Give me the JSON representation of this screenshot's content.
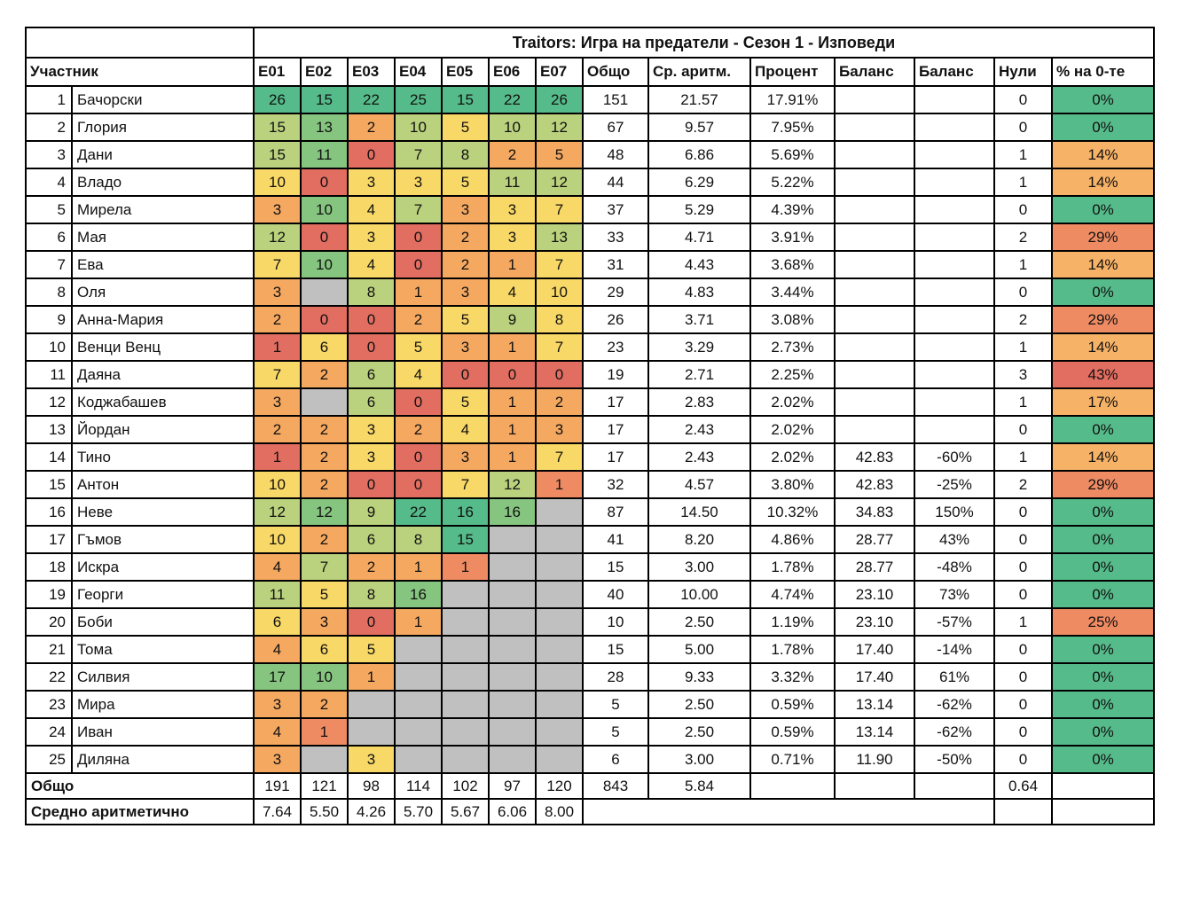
{
  "title": "Traitors: Игра на предатели - Сезон 1 - Изповеди",
  "columns": {
    "participant": "Участник",
    "episodes": [
      "E01",
      "E02",
      "E03",
      "E04",
      "E05",
      "E06",
      "E07"
    ],
    "rest": [
      "Общо",
      "Ср. аритм.",
      "Процент",
      "Баланс",
      "Баланс",
      "Нули",
      "% на 0-те"
    ]
  },
  "palette": {
    "g": "#56bb8a",
    "mg": "#86c57f",
    "lg": "#bad17d",
    "y": "#f8d866",
    "o": "#f5a860",
    "o2": "#f6b267",
    "r2": "#ee8b63",
    "r": "#e26d61",
    "gray": "#c0c0c0"
  },
  "rows": [
    {
      "n": "1",
      "name": "Бачорски",
      "e": [
        [
          "26",
          "g"
        ],
        [
          "15",
          "g"
        ],
        [
          "22",
          "g"
        ],
        [
          "25",
          "g"
        ],
        [
          "15",
          "g"
        ],
        [
          "22",
          "g"
        ],
        [
          "26",
          "g"
        ]
      ],
      "t": "151",
      "a": "21.57",
      "p": "17.91%",
      "b1": "",
      "b2": "",
      "z": "0",
      "zp": "0%",
      "zc": "g"
    },
    {
      "n": "2",
      "name": "Глория",
      "e": [
        [
          "15",
          "lg"
        ],
        [
          "13",
          "mg"
        ],
        [
          "2",
          "o"
        ],
        [
          "10",
          "lg"
        ],
        [
          "5",
          "y"
        ],
        [
          "10",
          "lg"
        ],
        [
          "12",
          "lg"
        ]
      ],
      "t": "67",
      "a": "9.57",
      "p": "7.95%",
      "b1": "",
      "b2": "",
      "z": "0",
      "zp": "0%",
      "zc": "g"
    },
    {
      "n": "3",
      "name": "Дани",
      "e": [
        [
          "15",
          "lg"
        ],
        [
          "11",
          "mg"
        ],
        [
          "0",
          "r"
        ],
        [
          "7",
          "lg"
        ],
        [
          "8",
          "lg"
        ],
        [
          "2",
          "o"
        ],
        [
          "5",
          "o"
        ]
      ],
      "t": "48",
      "a": "6.86",
      "p": "5.69%",
      "b1": "",
      "b2": "",
      "z": "1",
      "zp": "14%",
      "zc": "o2"
    },
    {
      "n": "4",
      "name": "Владо",
      "e": [
        [
          "10",
          "y"
        ],
        [
          "0",
          "r"
        ],
        [
          "3",
          "y"
        ],
        [
          "3",
          "y"
        ],
        [
          "5",
          "y"
        ],
        [
          "11",
          "lg"
        ],
        [
          "12",
          "lg"
        ]
      ],
      "t": "44",
      "a": "6.29",
      "p": "5.22%",
      "b1": "",
      "b2": "",
      "z": "1",
      "zp": "14%",
      "zc": "o2"
    },
    {
      "n": "5",
      "name": "Мирела",
      "e": [
        [
          "3",
          "o"
        ],
        [
          "10",
          "mg"
        ],
        [
          "4",
          "y"
        ],
        [
          "7",
          "lg"
        ],
        [
          "3",
          "o"
        ],
        [
          "3",
          "y"
        ],
        [
          "7",
          "y"
        ]
      ],
      "t": "37",
      "a": "5.29",
      "p": "4.39%",
      "b1": "",
      "b2": "",
      "z": "0",
      "zp": "0%",
      "zc": "g"
    },
    {
      "n": "6",
      "name": "Мая",
      "e": [
        [
          "12",
          "lg"
        ],
        [
          "0",
          "r"
        ],
        [
          "3",
          "y"
        ],
        [
          "0",
          "r"
        ],
        [
          "2",
          "o"
        ],
        [
          "3",
          "y"
        ],
        [
          "13",
          "lg"
        ]
      ],
      "t": "33",
      "a": "4.71",
      "p": "3.91%",
      "b1": "",
      "b2": "",
      "z": "2",
      "zp": "29%",
      "zc": "r2"
    },
    {
      "n": "7",
      "name": "Ева",
      "e": [
        [
          "7",
          "y"
        ],
        [
          "10",
          "mg"
        ],
        [
          "4",
          "y"
        ],
        [
          "0",
          "r"
        ],
        [
          "2",
          "o"
        ],
        [
          "1",
          "o"
        ],
        [
          "7",
          "y"
        ]
      ],
      "t": "31",
      "a": "4.43",
      "p": "3.68%",
      "b1": "",
      "b2": "",
      "z": "1",
      "zp": "14%",
      "zc": "o2"
    },
    {
      "n": "8",
      "name": "Оля",
      "e": [
        [
          "3",
          "o"
        ],
        [
          "",
          "gray"
        ],
        [
          "8",
          "lg"
        ],
        [
          "1",
          "o"
        ],
        [
          "3",
          "o"
        ],
        [
          "4",
          "y"
        ],
        [
          "10",
          "y"
        ]
      ],
      "t": "29",
      "a": "4.83",
      "p": "3.44%",
      "b1": "",
      "b2": "",
      "z": "0",
      "zp": "0%",
      "zc": "g"
    },
    {
      "n": "9",
      "name": "Анна-Мария",
      "e": [
        [
          "2",
          "o"
        ],
        [
          "0",
          "r"
        ],
        [
          "0",
          "r"
        ],
        [
          "2",
          "o"
        ],
        [
          "5",
          "y"
        ],
        [
          "9",
          "lg"
        ],
        [
          "8",
          "y"
        ]
      ],
      "t": "26",
      "a": "3.71",
      "p": "3.08%",
      "b1": "",
      "b2": "",
      "z": "2",
      "zp": "29%",
      "zc": "r2"
    },
    {
      "n": "10",
      "name": "Венци Венц",
      "e": [
        [
          "1",
          "r"
        ],
        [
          "6",
          "y"
        ],
        [
          "0",
          "r"
        ],
        [
          "5",
          "y"
        ],
        [
          "3",
          "o"
        ],
        [
          "1",
          "o"
        ],
        [
          "7",
          "y"
        ]
      ],
      "t": "23",
      "a": "3.29",
      "p": "2.73%",
      "b1": "",
      "b2": "",
      "z": "1",
      "zp": "14%",
      "zc": "o2"
    },
    {
      "n": "11",
      "name": "Даяна",
      "e": [
        [
          "7",
          "y"
        ],
        [
          "2",
          "o"
        ],
        [
          "6",
          "lg"
        ],
        [
          "4",
          "y"
        ],
        [
          "0",
          "r"
        ],
        [
          "0",
          "r"
        ],
        [
          "0",
          "r"
        ]
      ],
      "t": "19",
      "a": "2.71",
      "p": "2.25%",
      "b1": "",
      "b2": "",
      "z": "3",
      "zp": "43%",
      "zc": "r"
    },
    {
      "n": "12",
      "name": "Коджабашев",
      "e": [
        [
          "3",
          "o"
        ],
        [
          "",
          "gray"
        ],
        [
          "6",
          "lg"
        ],
        [
          "0",
          "r"
        ],
        [
          "5",
          "y"
        ],
        [
          "1",
          "o"
        ],
        [
          "2",
          "o"
        ]
      ],
      "t": "17",
      "a": "2.83",
      "p": "2.02%",
      "b1": "",
      "b2": "",
      "z": "1",
      "zp": "17%",
      "zc": "o2"
    },
    {
      "n": "13",
      "name": "Йордан",
      "e": [
        [
          "2",
          "o"
        ],
        [
          "2",
          "o"
        ],
        [
          "3",
          "y"
        ],
        [
          "2",
          "o"
        ],
        [
          "4",
          "y"
        ],
        [
          "1",
          "o"
        ],
        [
          "3",
          "o"
        ]
      ],
      "t": "17",
      "a": "2.43",
      "p": "2.02%",
      "b1": "",
      "b2": "",
      "z": "0",
      "zp": "0%",
      "zc": "g"
    },
    {
      "n": "14",
      "name": "Тино",
      "e": [
        [
          "1",
          "r"
        ],
        [
          "2",
          "o"
        ],
        [
          "3",
          "y"
        ],
        [
          "0",
          "r"
        ],
        [
          "3",
          "o"
        ],
        [
          "1",
          "o"
        ],
        [
          "7",
          "y"
        ]
      ],
      "t": "17",
      "a": "2.43",
      "p": "2.02%",
      "b1": "42.83",
      "b2": "-60%",
      "z": "1",
      "zp": "14%",
      "zc": "o2"
    },
    {
      "n": "15",
      "name": "Антон",
      "e": [
        [
          "10",
          "y"
        ],
        [
          "2",
          "o"
        ],
        [
          "0",
          "r"
        ],
        [
          "0",
          "r"
        ],
        [
          "7",
          "y"
        ],
        [
          "12",
          "lg"
        ],
        [
          "1",
          "r2"
        ]
      ],
      "t": "32",
      "a": "4.57",
      "p": "3.80%",
      "b1": "42.83",
      "b2": "-25%",
      "z": "2",
      "zp": "29%",
      "zc": "r2"
    },
    {
      "n": "16",
      "name": "Неве",
      "e": [
        [
          "12",
          "lg"
        ],
        [
          "12",
          "mg"
        ],
        [
          "9",
          "lg"
        ],
        [
          "22",
          "g"
        ],
        [
          "16",
          "g"
        ],
        [
          "16",
          "mg"
        ],
        [
          "",
          "gray"
        ]
      ],
      "t": "87",
      "a": "14.50",
      "p": "10.32%",
      "b1": "34.83",
      "b2": "150%",
      "z": "0",
      "zp": "0%",
      "zc": "g"
    },
    {
      "n": "17",
      "name": "Гъмов",
      "e": [
        [
          "10",
          "y"
        ],
        [
          "2",
          "o"
        ],
        [
          "6",
          "lg"
        ],
        [
          "8",
          "lg"
        ],
        [
          "15",
          "g"
        ],
        [
          "",
          "gray"
        ],
        [
          "",
          "gray"
        ]
      ],
      "t": "41",
      "a": "8.20",
      "p": "4.86%",
      "b1": "28.77",
      "b2": "43%",
      "z": "0",
      "zp": "0%",
      "zc": "g"
    },
    {
      "n": "18",
      "name": "Искра",
      "e": [
        [
          "4",
          "o"
        ],
        [
          "7",
          "lg"
        ],
        [
          "2",
          "o"
        ],
        [
          "1",
          "o"
        ],
        [
          "1",
          "r2"
        ],
        [
          "",
          "gray"
        ],
        [
          "",
          "gray"
        ]
      ],
      "t": "15",
      "a": "3.00",
      "p": "1.78%",
      "b1": "28.77",
      "b2": "-48%",
      "z": "0",
      "zp": "0%",
      "zc": "g"
    },
    {
      "n": "19",
      "name": "Георги",
      "e": [
        [
          "11",
          "lg"
        ],
        [
          "5",
          "y"
        ],
        [
          "8",
          "lg"
        ],
        [
          "16",
          "mg"
        ],
        [
          "",
          "gray"
        ],
        [
          "",
          "gray"
        ],
        [
          "",
          "gray"
        ]
      ],
      "t": "40",
      "a": "10.00",
      "p": "4.74%",
      "b1": "23.10",
      "b2": "73%",
      "z": "0",
      "zp": "0%",
      "zc": "g"
    },
    {
      "n": "20",
      "name": "Боби",
      "e": [
        [
          "6",
          "y"
        ],
        [
          "3",
          "o"
        ],
        [
          "0",
          "r"
        ],
        [
          "1",
          "o"
        ],
        [
          "",
          "gray"
        ],
        [
          "",
          "gray"
        ],
        [
          "",
          "gray"
        ]
      ],
      "t": "10",
      "a": "2.50",
      "p": "1.19%",
      "b1": "23.10",
      "b2": "-57%",
      "z": "1",
      "zp": "25%",
      "zc": "r2"
    },
    {
      "n": "21",
      "name": "Тома",
      "e": [
        [
          "4",
          "o"
        ],
        [
          "6",
          "y"
        ],
        [
          "5",
          "y"
        ],
        [
          "",
          "gray"
        ],
        [
          "",
          "gray"
        ],
        [
          "",
          "gray"
        ],
        [
          "",
          "gray"
        ]
      ],
      "t": "15",
      "a": "5.00",
      "p": "1.78%",
      "b1": "17.40",
      "b2": "-14%",
      "z": "0",
      "zp": "0%",
      "zc": "g"
    },
    {
      "n": "22",
      "name": "Силвия",
      "e": [
        [
          "17",
          "mg"
        ],
        [
          "10",
          "mg"
        ],
        [
          "1",
          "o"
        ],
        [
          "",
          "gray"
        ],
        [
          "",
          "gray"
        ],
        [
          "",
          "gray"
        ],
        [
          "",
          "gray"
        ]
      ],
      "t": "28",
      "a": "9.33",
      "p": "3.32%",
      "b1": "17.40",
      "b2": "61%",
      "z": "0",
      "zp": "0%",
      "zc": "g"
    },
    {
      "n": "23",
      "name": "Мира",
      "e": [
        [
          "3",
          "o"
        ],
        [
          "2",
          "o"
        ],
        [
          "",
          "gray"
        ],
        [
          "",
          "gray"
        ],
        [
          "",
          "gray"
        ],
        [
          "",
          "gray"
        ],
        [
          "",
          "gray"
        ]
      ],
      "t": "5",
      "a": "2.50",
      "p": "0.59%",
      "b1": "13.14",
      "b2": "-62%",
      "z": "0",
      "zp": "0%",
      "zc": "g"
    },
    {
      "n": "24",
      "name": "Иван",
      "e": [
        [
          "4",
          "o"
        ],
        [
          "1",
          "r2"
        ],
        [
          "",
          "gray"
        ],
        [
          "",
          "gray"
        ],
        [
          "",
          "gray"
        ],
        [
          "",
          "gray"
        ],
        [
          "",
          "gray"
        ]
      ],
      "t": "5",
      "a": "2.50",
      "p": "0.59%",
      "b1": "13.14",
      "b2": "-62%",
      "z": "0",
      "zp": "0%",
      "zc": "g"
    },
    {
      "n": "25",
      "name": "Диляна",
      "e": [
        [
          "3",
          "o"
        ],
        [
          "",
          "gray"
        ],
        [
          "3",
          "y"
        ],
        [
          "",
          "gray"
        ],
        [
          "",
          "gray"
        ],
        [
          "",
          "gray"
        ],
        [
          "",
          "gray"
        ]
      ],
      "t": "6",
      "a": "3.00",
      "p": "0.71%",
      "b1": "11.90",
      "b2": "-50%",
      "z": "0",
      "zp": "0%",
      "zc": "g"
    }
  ],
  "totals": {
    "label": "Общо",
    "e": [
      "191",
      "121",
      "98",
      "114",
      "102",
      "97",
      "120"
    ],
    "t": "843",
    "a": "5.84",
    "p": "",
    "b1": "",
    "b2": "",
    "z": "0.64",
    "zp": ""
  },
  "means": {
    "label": "Средно аритметично",
    "e": [
      "7.64",
      "5.50",
      "4.26",
      "5.70",
      "5.67",
      "6.06",
      "8.00"
    ]
  }
}
